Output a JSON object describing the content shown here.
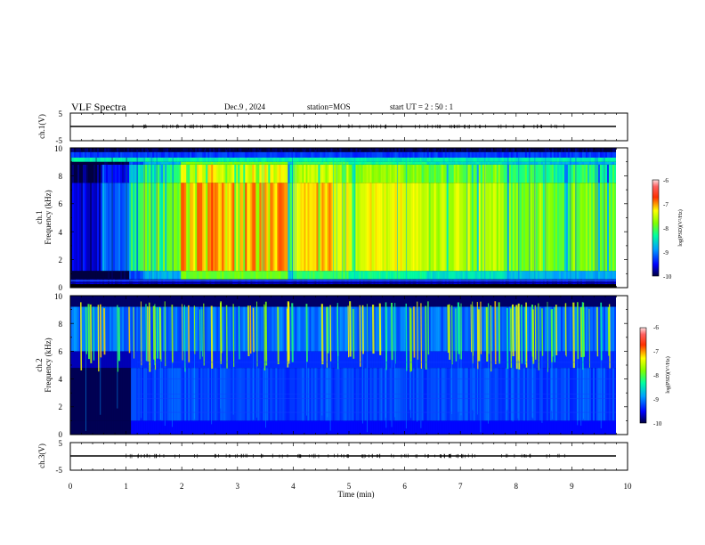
{
  "header": {
    "title": "VLF Spectra",
    "date": "Dec.9 , 2024",
    "station": "station=MOS",
    "start": "start UT = 2 : 50 : 1"
  },
  "colors": {
    "palette": [
      "#000000",
      "#00007f",
      "#0000ff",
      "#0080ff",
      "#00ffff",
      "#00ff80",
      "#80ff00",
      "#ffff00",
      "#ff8000",
      "#ff0000",
      "#ff9090",
      "#ffffff"
    ]
  },
  "chart_data": [
    {
      "type": "line",
      "ylabel": "ch.1(V)",
      "ylim": [
        -5,
        5
      ],
      "yticks": [
        "5",
        "-5"
      ],
      "xlim": [
        0,
        10
      ],
      "series": [
        {
          "values": [
            0,
            0
          ]
        }
      ]
    },
    {
      "type": "heatmap",
      "ylabel_lines": [
        "ch.1",
        "Frequency (kHz)"
      ],
      "ylim": [
        0,
        10
      ],
      "yticks": [
        "0",
        "2",
        "4",
        "6",
        "8",
        "10"
      ],
      "xlim": [
        0,
        10
      ],
      "colorbar": {
        "label": "log(PSD)(V²/Hz)",
        "ticks": [
          "-6",
          "-7",
          "-8",
          "-9",
          "-10"
        ],
        "range": [
          -10,
          -6
        ]
      },
      "bands_min": [
        {
          "start": 0.0,
          "end": 0.55,
          "level": -9.6
        },
        {
          "start": 0.55,
          "end": 1.05,
          "level": -9.1
        },
        {
          "start": 1.05,
          "end": 1.3,
          "level": -8.3
        },
        {
          "start": 1.3,
          "end": 2.0,
          "level": -7.9
        },
        {
          "start": 2.0,
          "end": 3.9,
          "level": -7.0
        },
        {
          "start": 3.9,
          "end": 4.0,
          "level": -7.8
        },
        {
          "start": 4.0,
          "end": 5.0,
          "level": -7.2
        },
        {
          "start": 5.0,
          "end": 6.4,
          "level": -7.4
        },
        {
          "start": 6.4,
          "end": 7.8,
          "level": -7.6
        },
        {
          "start": 7.8,
          "end": 8.6,
          "level": -7.8
        },
        {
          "start": 8.6,
          "end": 9.8,
          "level": -7.9
        }
      ]
    },
    {
      "type": "heatmap",
      "ylabel_lines": [
        "ch.2",
        "Frequency (kHz)"
      ],
      "ylim": [
        0,
        10
      ],
      "yticks": [
        "0",
        "2",
        "4",
        "6",
        "8",
        "10"
      ],
      "xlim": [
        0,
        10
      ],
      "colorbar": {
        "label": "log(PSD)(V²/Hz)",
        "ticks": [
          "-6",
          "-7",
          "-8",
          "-9",
          "-10"
        ],
        "range": [
          -10,
          -6
        ]
      }
    },
    {
      "type": "line",
      "ylabel": "ch.3(V)",
      "ylim": [
        -5,
        5
      ],
      "yticks": [
        "5",
        "-5"
      ],
      "xlim": [
        0,
        10
      ],
      "xlabel": "Time (min)",
      "xticks": [
        "0",
        "1",
        "2",
        "3",
        "4",
        "5",
        "6",
        "7",
        "8",
        "9",
        "10"
      ],
      "series": [
        {
          "values": [
            0,
            0
          ]
        }
      ]
    }
  ]
}
